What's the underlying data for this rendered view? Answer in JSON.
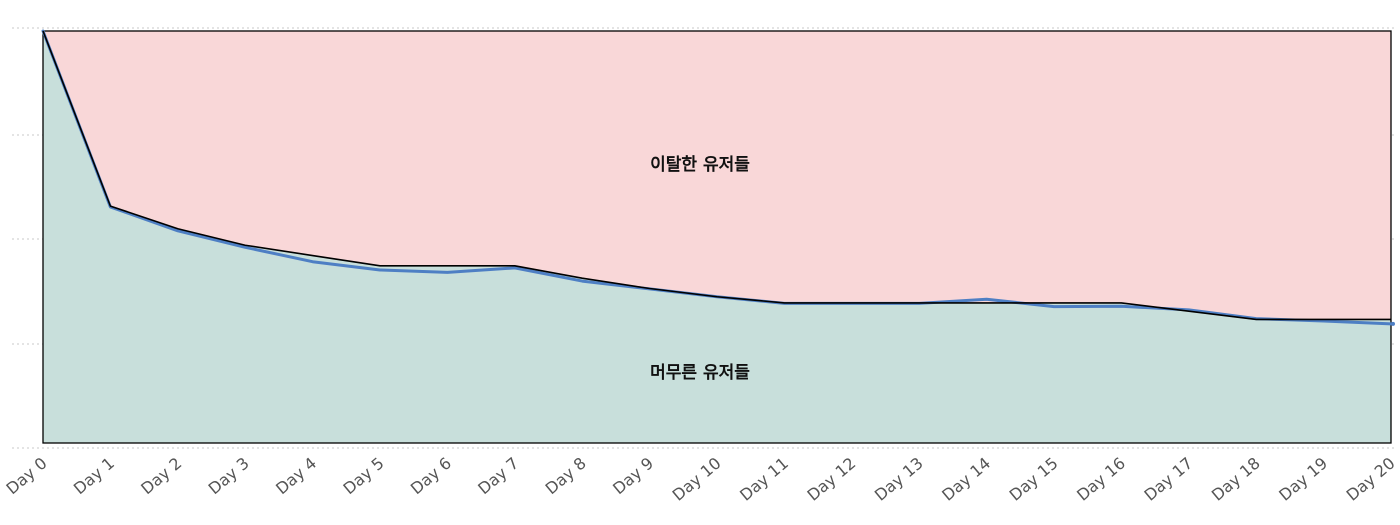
{
  "chart_data": {
    "type": "area",
    "title": "",
    "xlabel": "",
    "ylabel": "",
    "ylim": [
      0,
      1
    ],
    "grid": true,
    "categories": [
      "Day 0",
      "Day 1",
      "Day 2",
      "Day 3",
      "Day 4",
      "Day 5",
      "Day 6",
      "Day 7",
      "Day 8",
      "Day 9",
      "Day 10",
      "Day 11",
      "Day 12",
      "Day 13",
      "Day 14",
      "Day 15",
      "Day 16",
      "Day 17",
      "Day 18",
      "Day 19",
      "Day 20"
    ],
    "series": [
      {
        "key": "retained",
        "values": [
          1.0,
          0.575,
          0.52,
          0.48,
          0.455,
          0.43,
          0.43,
          0.43,
          0.4,
          0.375,
          0.355,
          0.34,
          0.34,
          0.34,
          0.34,
          0.34,
          0.34,
          0.32,
          0.3,
          0.3,
          0.3
        ]
      },
      {
        "key": "trend",
        "values": [
          1.0,
          0.573,
          0.515,
          0.475,
          0.44,
          0.42,
          0.414,
          0.425,
          0.393,
          0.374,
          0.355,
          0.339,
          0.339,
          0.339,
          0.349,
          0.331,
          0.332,
          0.323,
          0.302,
          0.296,
          0.289
        ]
      }
    ],
    "region_labels": {
      "churned": "이탈한 유저들",
      "retained": "머무른 유저들"
    },
    "colors": {
      "churned_fill": "#f9d7d8",
      "retained_fill": "#c8dfdb",
      "retained_line": "#000000",
      "trend_line": "#4e7fc4",
      "grid": "#c8c8c8"
    }
  }
}
